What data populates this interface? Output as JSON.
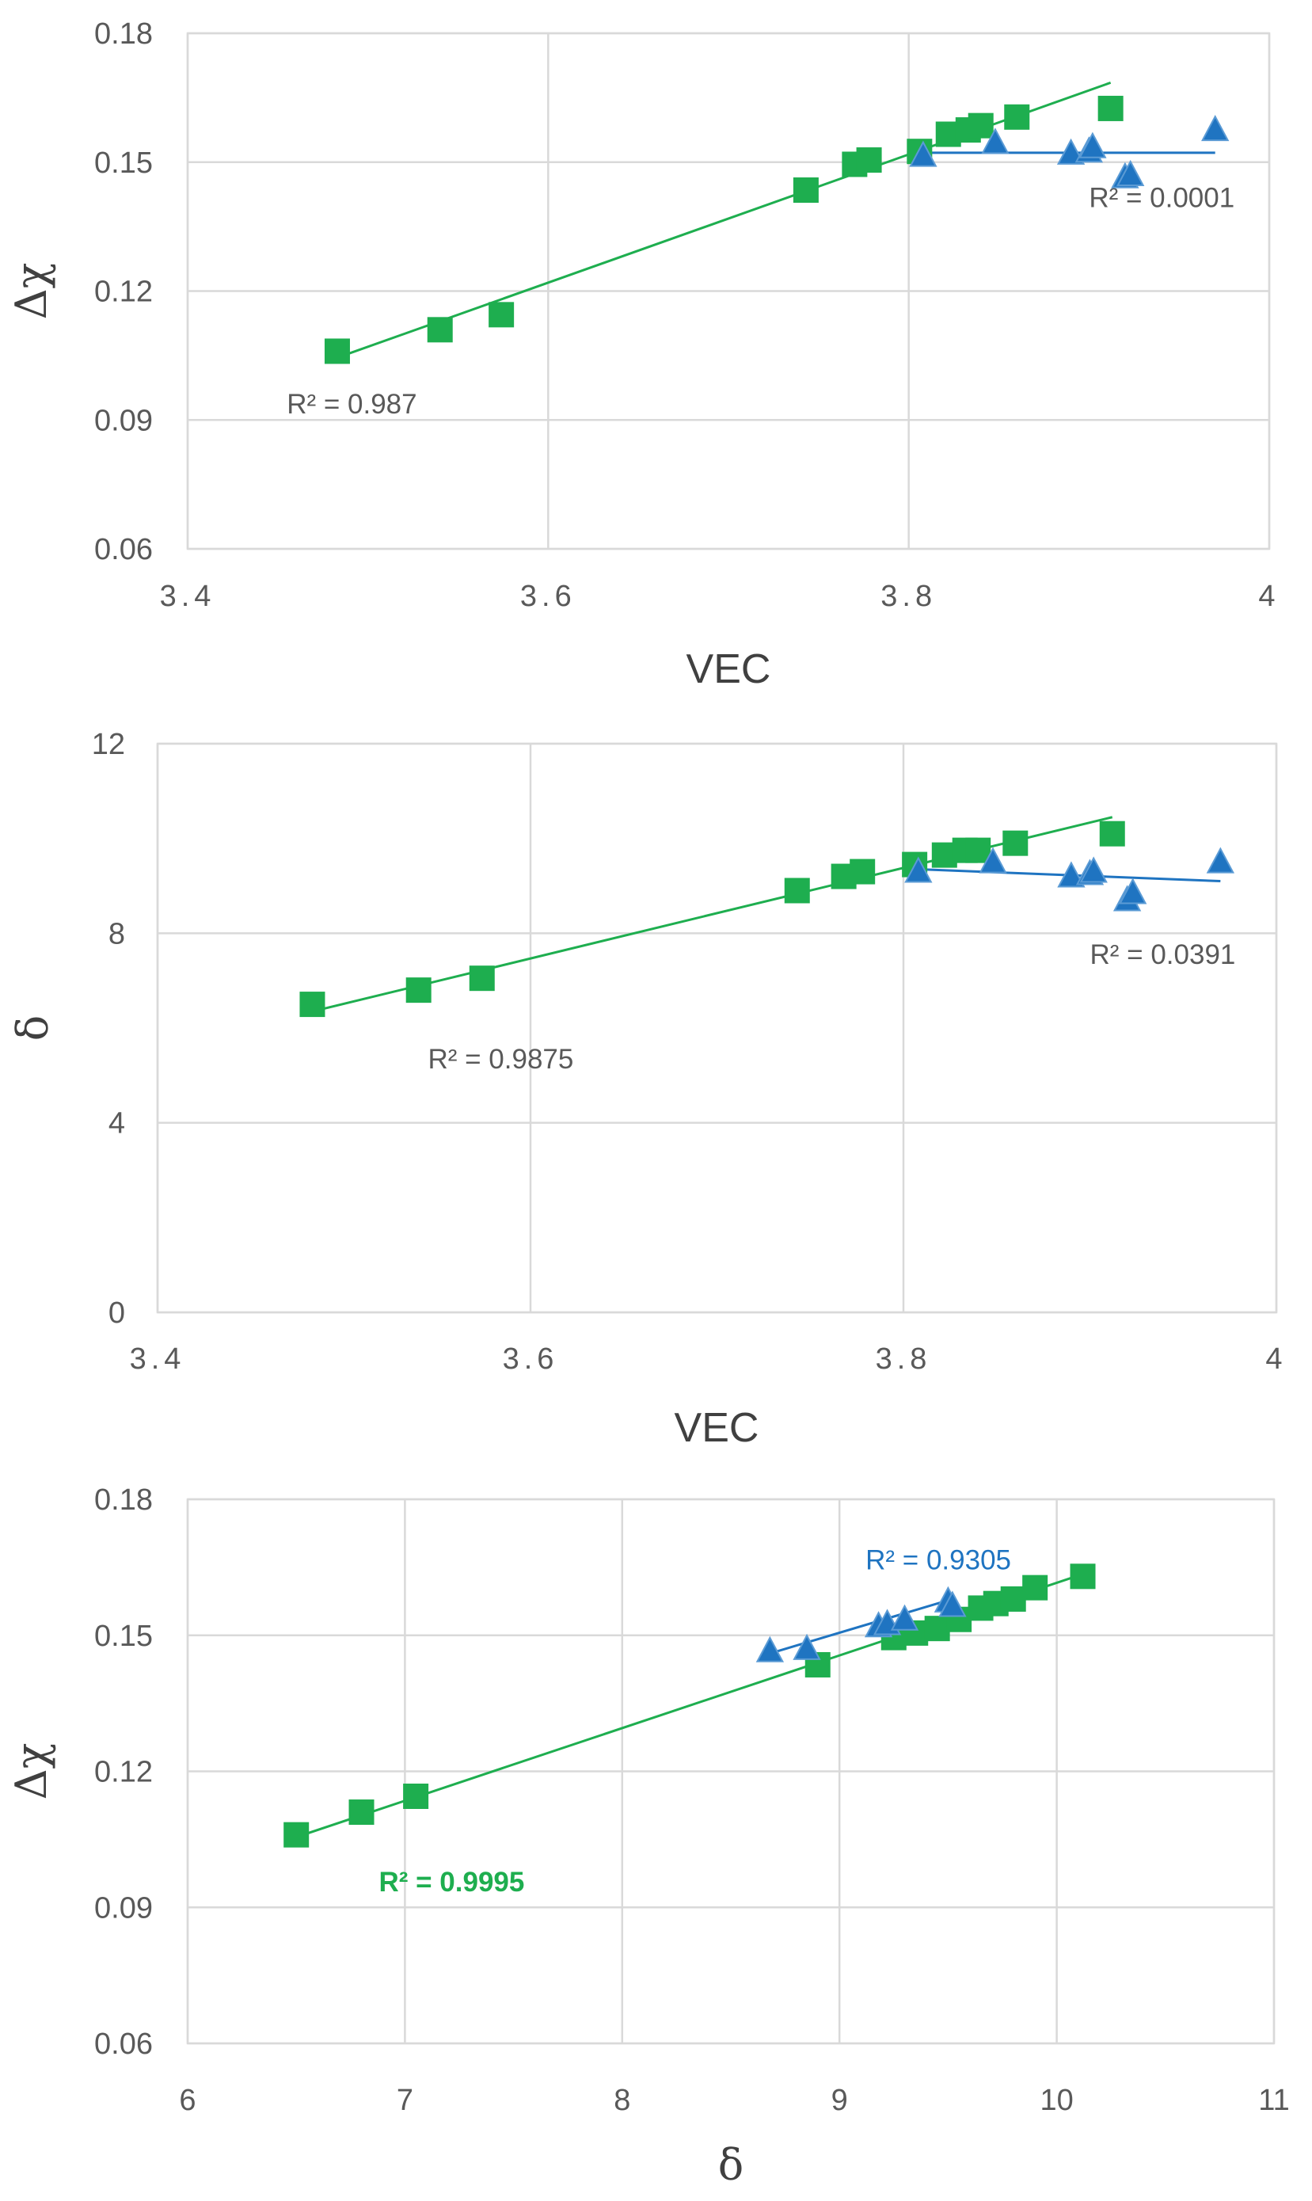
{
  "colors": {
    "green": "#1EAE4F",
    "blue": "#1F74C1",
    "grid": "#D9D9D9",
    "tick": "#595959",
    "r2_gray": "#595959"
  },
  "chart_data": [
    {
      "type": "scatter",
      "xlabel": "VEC",
      "ylabel": "Δχ",
      "xlim": [
        3.4,
        4.0
      ],
      "ylim": [
        0.06,
        0.18
      ],
      "xticks": [
        3.4,
        3.6,
        3.8,
        4.0
      ],
      "yticks": [
        0.06,
        0.09,
        0.12,
        0.15,
        0.18
      ],
      "xtick_labels": [
        "3.4",
        "3.6",
        "3.8",
        "4"
      ],
      "ytick_labels": [
        "0.06",
        "0.09",
        "0.12",
        "0.15",
        "0.18"
      ],
      "grid": true,
      "series": [
        {
          "name": "green squares",
          "marker": "square",
          "color": "#1EAE4F",
          "x": [
            3.483,
            3.54,
            3.574,
            3.743,
            3.77,
            3.778,
            3.806,
            3.822,
            3.833,
            3.84,
            3.86,
            3.912
          ],
          "y": [
            0.106,
            0.111,
            0.1145,
            0.1435,
            0.1495,
            0.1505,
            0.1525,
            0.1565,
            0.1575,
            0.1585,
            0.1605,
            0.1625
          ],
          "trendline": {
            "x": [
              3.483,
              3.912
            ],
            "y": [
              0.1045,
              0.1685
            ]
          },
          "r2_label": "R² = 0.987",
          "r2_anchor": [
            3.455,
            0.0915
          ]
        },
        {
          "name": "blue triangles",
          "marker": "triangle",
          "color": "#1F74C1",
          "x": [
            3.808,
            3.848,
            3.89,
            3.9,
            3.902,
            3.92,
            3.923,
            3.97
          ],
          "y": [
            0.1515,
            0.1545,
            0.152,
            0.1525,
            0.1535,
            0.1465,
            0.147,
            0.1575
          ],
          "trendline": {
            "x": [
              3.808,
              3.97
            ],
            "y": [
              0.1522,
              0.1522
            ]
          },
          "r2_label": "R² = 0.0001",
          "r2_anchor": [
            3.9,
            0.1395
          ]
        }
      ]
    },
    {
      "type": "scatter",
      "xlabel": "VEC",
      "ylabel": "δ",
      "xlim": [
        3.4,
        4.0
      ],
      "ylim": [
        0,
        12
      ],
      "xticks": [
        3.4,
        3.6,
        3.8,
        4.0
      ],
      "yticks": [
        0,
        4,
        8,
        12
      ],
      "xtick_labels": [
        "3.4",
        "3.6",
        "3.8",
        "4"
      ],
      "ytick_labels": [
        "0",
        "4",
        "8",
        "12"
      ],
      "grid": true,
      "series": [
        {
          "name": "green squares",
          "marker": "square",
          "color": "#1EAE4F",
          "x": [
            3.483,
            3.54,
            3.574,
            3.743,
            3.768,
            3.778,
            3.806,
            3.822,
            3.833,
            3.84,
            3.86,
            3.912
          ],
          "y": [
            6.5,
            6.8,
            7.05,
            8.9,
            9.2,
            9.3,
            9.45,
            9.65,
            9.75,
            9.75,
            9.9,
            10.1
          ],
          "trendline": {
            "x": [
              3.483,
              3.912
            ],
            "y": [
              6.35,
              10.45
            ]
          },
          "r2_label": "R² = 0.9875",
          "r2_anchor": [
            3.545,
            5.15
          ]
        },
        {
          "name": "blue triangles",
          "marker": "triangle",
          "color": "#1F74C1",
          "x": [
            3.808,
            3.848,
            3.89,
            3.9,
            3.902,
            3.92,
            3.923,
            3.97
          ],
          "y": [
            9.3,
            9.5,
            9.2,
            9.25,
            9.3,
            8.7,
            8.85,
            9.5
          ],
          "trendline": {
            "x": [
              3.808,
              3.97
            ],
            "y": [
              9.35,
              9.1
            ]
          },
          "r2_label": "R² = 0.0391",
          "r2_anchor": [
            3.9,
            7.35
          ]
        }
      ]
    },
    {
      "type": "scatter",
      "xlabel": "δ",
      "ylabel": "Δχ",
      "xlim": [
        6,
        11
      ],
      "ylim": [
        0.06,
        0.18
      ],
      "xticks": [
        6,
        7,
        8,
        9,
        10,
        11
      ],
      "yticks": [
        0.06,
        0.09,
        0.12,
        0.15,
        0.18
      ],
      "xtick_labels": [
        "6",
        "7",
        "8",
        "9",
        "10",
        "11"
      ],
      "ytick_labels": [
        "0.06",
        "0.09",
        "0.12",
        "0.15",
        "0.18"
      ],
      "grid": true,
      "series": [
        {
          "name": "green squares",
          "marker": "square",
          "color": "#1EAE4F",
          "x": [
            6.5,
            6.8,
            7.05,
            8.9,
            9.25,
            9.35,
            9.45,
            9.55,
            9.65,
            9.72,
            9.8,
            9.9,
            10.12
          ],
          "y": [
            0.106,
            0.111,
            0.1145,
            0.1435,
            0.1495,
            0.1505,
            0.1515,
            0.1535,
            0.156,
            0.157,
            0.158,
            0.1605,
            0.163
          ],
          "trendline": {
            "x": [
              6.5,
              10.12
            ],
            "y": [
              0.1055,
              0.1635
            ]
          },
          "r2_label": "R² = 0.9995",
          "r2_anchor": [
            6.88,
            0.0935
          ],
          "r2_bold": true
        },
        {
          "name": "blue triangles",
          "marker": "triangle",
          "color": "#1F74C1",
          "x": [
            8.68,
            8.85,
            9.18,
            9.22,
            9.3,
            9.5,
            9.52
          ],
          "y": [
            0.1465,
            0.147,
            0.152,
            0.1525,
            0.1535,
            0.1575,
            0.1565
          ],
          "trendline": {
            "x": [
              8.68,
              9.52
            ],
            "y": [
              0.146,
              0.158
            ]
          },
          "r2_label": "R² = 0.9305",
          "r2_anchor": [
            9.12,
            0.1645
          ]
        }
      ]
    }
  ]
}
